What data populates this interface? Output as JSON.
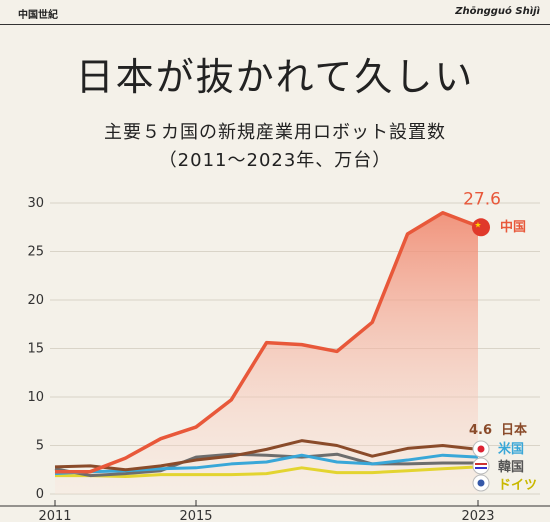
{
  "header": {
    "brand_left": "中国世紀",
    "brand_right": "Zhōngguó Shìjì"
  },
  "headline": "日本が抜かれて久しい",
  "chart_data": {
    "type": "line",
    "title": "主要５カ国の新規産業用ロボット設置数",
    "subtitle": "（2011～2023年、万台）",
    "x": [
      2011,
      2012,
      2013,
      2014,
      2015,
      2016,
      2017,
      2018,
      2019,
      2020,
      2021,
      2022,
      2023
    ],
    "x_tick_labels": [
      "2011",
      "2015",
      "2023"
    ],
    "ylim": [
      0,
      30
    ],
    "y_ticks": [
      0,
      5,
      10,
      15,
      20,
      25,
      30
    ],
    "grid": "horizontal",
    "series": [
      {
        "name": "中国",
        "color": "#e8583a",
        "fill": true,
        "end_label": "27.6",
        "values": [
          2.3,
          2.3,
          3.7,
          5.7,
          6.9,
          9.7,
          15.6,
          15.4,
          14.7,
          17.7,
          26.8,
          29.0,
          27.6
        ]
      },
      {
        "name": "日本",
        "color": "#8a4b2a",
        "end_label": "4.6",
        "values": [
          2.8,
          2.9,
          2.5,
          2.9,
          3.5,
          3.9,
          4.6,
          5.5,
          5.0,
          3.9,
          4.7,
          5.0,
          4.6
        ]
      },
      {
        "name": "米国",
        "color": "#39a7d8",
        "values": [
          2.1,
          2.3,
          2.4,
          2.6,
          2.7,
          3.1,
          3.3,
          4.0,
          3.3,
          3.1,
          3.5,
          4.0,
          3.8
        ]
      },
      {
        "name": "韓国",
        "color": "#6d6d6d",
        "values": [
          2.6,
          1.9,
          2.1,
          2.4,
          3.8,
          4.1,
          4.0,
          3.8,
          4.1,
          3.1,
          3.1,
          3.2,
          3.2
        ]
      },
      {
        "name": "ドイツ",
        "color": "#e3d430",
        "values": [
          1.9,
          1.9,
          1.8,
          2.0,
          2.0,
          2.0,
          2.1,
          2.7,
          2.2,
          2.2,
          2.4,
          2.6,
          2.8
        ]
      }
    ]
  }
}
